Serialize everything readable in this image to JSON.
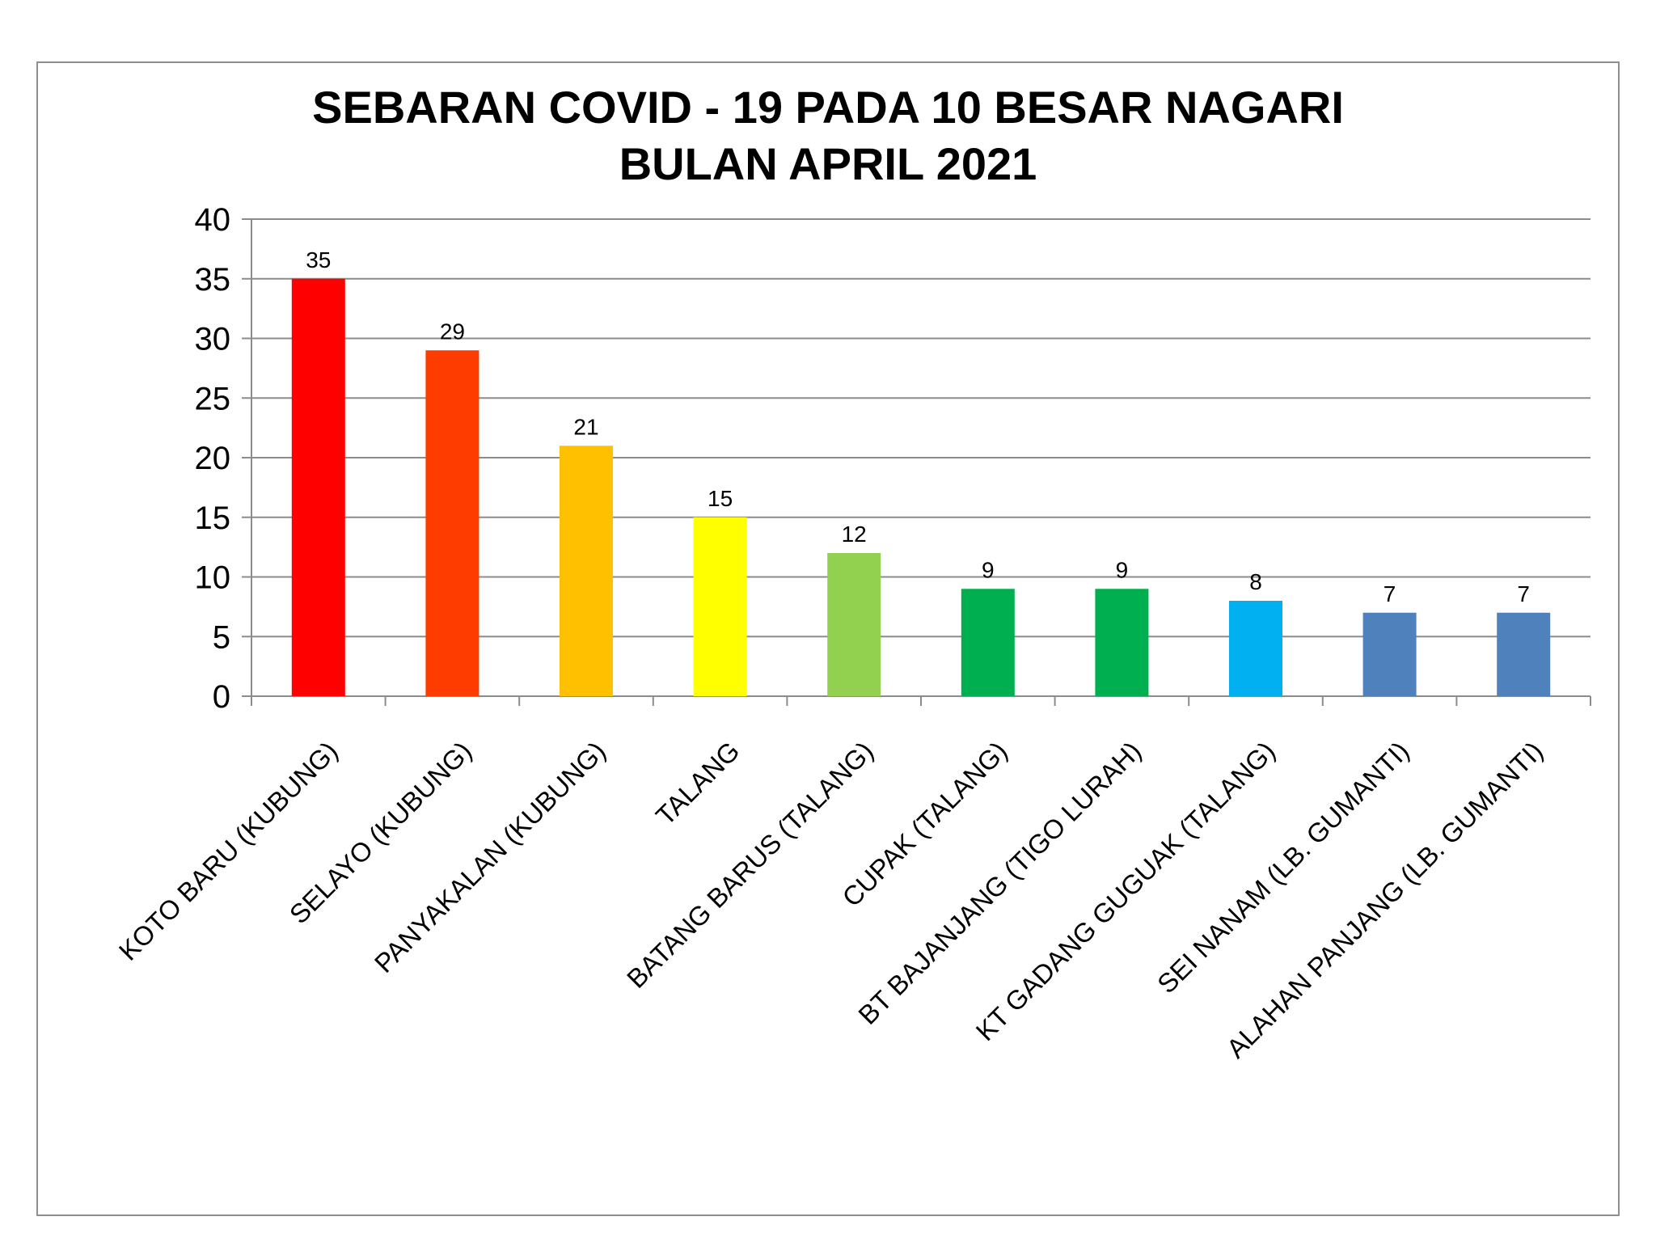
{
  "chart_data": {
    "type": "bar",
    "title": "SEBARAN COVID - 19 PADA 10 BESAR NAGARI",
    "subtitle": "BULAN APRIL 2021",
    "xlabel": "",
    "ylabel": "",
    "ylim": [
      0,
      40
    ],
    "yticks": [
      0,
      5,
      10,
      15,
      20,
      25,
      30,
      35,
      40
    ],
    "grid": true,
    "legend": "none",
    "categories": [
      "KOTO BARU (KUBUNG)",
      "SELAYO (KUBUNG)",
      "PANYAKALAN (KUBUNG)",
      "TALANG",
      "BATANG BARUS (TALANG)",
      "CUPAK (TALANG)",
      "BT BAJANJANG (TIGO LURAH)",
      "KT GADANG GUGUAK (TALANG)",
      "SEI NANAM (LB. GUMANTI)",
      "ALAHAN PANJANG (LB. GUMANTI)"
    ],
    "values": [
      35,
      29,
      21,
      15,
      12,
      9,
      9,
      8,
      7,
      7
    ],
    "colors": [
      "#ff0000",
      "#ff3c00",
      "#ffc000",
      "#ffff00",
      "#92d050",
      "#00b050",
      "#00b050",
      "#00b0f0",
      "#4f81bd",
      "#4f81bd"
    ]
  }
}
